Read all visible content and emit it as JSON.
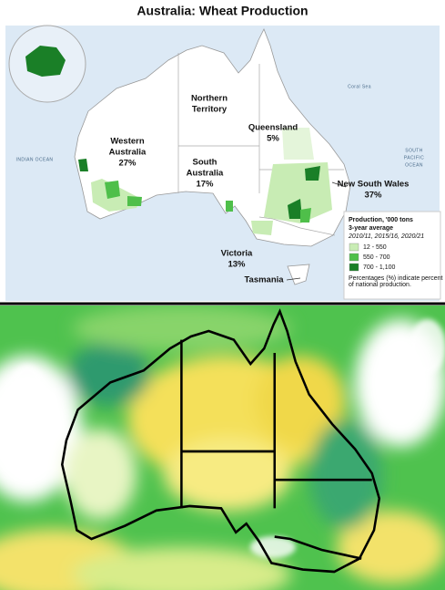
{
  "title": "Australia: Wheat Production",
  "regions": [
    {
      "name": [
        "Western",
        "Australia"
      ],
      "share": "27%"
    },
    {
      "name": [
        "Northern",
        "Territory"
      ]
    },
    {
      "name": [
        "Queensland"
      ],
      "share": "5%"
    },
    {
      "name": [
        "South",
        "Australia"
      ],
      "share": "17%"
    },
    {
      "name": [
        "New South Wales"
      ],
      "share": "37%"
    },
    {
      "name": [
        "Victoria"
      ],
      "share": "13%"
    },
    {
      "name": [
        "Tasmania"
      ]
    }
  ],
  "oceans": [
    [
      "INDIAN OCEAN"
    ],
    [
      "Coral Sea"
    ],
    [
      "SOUTH",
      "PACIFIC",
      "OCEAN"
    ]
  ],
  "legend": {
    "title": [
      "Production, '000 tons",
      "3-year average"
    ],
    "subtitle": "2010/11, 2015/16, 2020/21",
    "items": [
      {
        "label": "12 - 550",
        "color": "#c8ecb4"
      },
      {
        "label": "550 - 700",
        "color": "#4fbf4a"
      },
      {
        "label": "700 - 1,100",
        "color": "#1a7f27"
      }
    ],
    "note": [
      "Percentages (%) indicate percent",
      "of national production."
    ]
  }
}
